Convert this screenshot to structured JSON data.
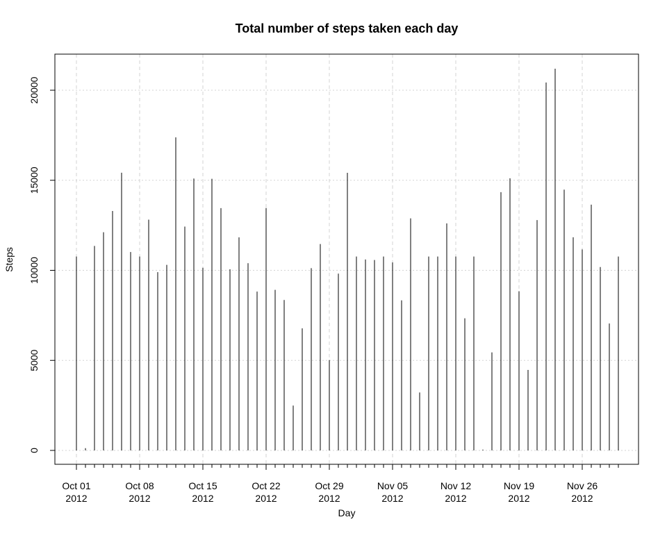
{
  "chart_data": {
    "type": "bar",
    "title": "Total number of steps taken each day",
    "xlabel": "Day",
    "ylabel": "Steps",
    "ylim": [
      0,
      21194
    ],
    "grid": true,
    "y_ticks": [
      0,
      5000,
      10000,
      15000,
      20000
    ],
    "x_ticks": [
      {
        "date": "2012-10-01",
        "label1": "Oct 01",
        "label2": "2012"
      },
      {
        "date": "2012-10-08",
        "label1": "Oct 08",
        "label2": "2012"
      },
      {
        "date": "2012-10-15",
        "label1": "Oct 15",
        "label2": "2012"
      },
      {
        "date": "2012-10-22",
        "label1": "Oct 22",
        "label2": "2012"
      },
      {
        "date": "2012-10-29",
        "label1": "Oct 29",
        "label2": "2012"
      },
      {
        "date": "2012-11-05",
        "label1": "Nov 05",
        "label2": "2012"
      },
      {
        "date": "2012-11-12",
        "label1": "Nov 12",
        "label2": "2012"
      },
      {
        "date": "2012-11-19",
        "label1": "Nov 19",
        "label2": "2012"
      },
      {
        "date": "2012-11-26",
        "label1": "Nov 26",
        "label2": "2012"
      }
    ],
    "categories": [
      "2012-10-01",
      "2012-10-02",
      "2012-10-03",
      "2012-10-04",
      "2012-10-05",
      "2012-10-06",
      "2012-10-07",
      "2012-10-08",
      "2012-10-09",
      "2012-10-10",
      "2012-10-11",
      "2012-10-12",
      "2012-10-13",
      "2012-10-14",
      "2012-10-15",
      "2012-10-16",
      "2012-10-17",
      "2012-10-18",
      "2012-10-19",
      "2012-10-20",
      "2012-10-21",
      "2012-10-22",
      "2012-10-23",
      "2012-10-24",
      "2012-10-25",
      "2012-10-26",
      "2012-10-27",
      "2012-10-28",
      "2012-10-29",
      "2012-10-30",
      "2012-10-31",
      "2012-11-01",
      "2012-11-02",
      "2012-11-03",
      "2012-11-04",
      "2012-11-05",
      "2012-11-06",
      "2012-11-07",
      "2012-11-08",
      "2012-11-09",
      "2012-11-10",
      "2012-11-11",
      "2012-11-12",
      "2012-11-13",
      "2012-11-14",
      "2012-11-15",
      "2012-11-16",
      "2012-11-17",
      "2012-11-18",
      "2012-11-19",
      "2012-11-20",
      "2012-11-21",
      "2012-11-22",
      "2012-11-23",
      "2012-11-24",
      "2012-11-25",
      "2012-11-26",
      "2012-11-27",
      "2012-11-28",
      "2012-11-29",
      "2012-11-30"
    ],
    "values": [
      10766,
      126,
      11352,
      12116,
      13294,
      15420,
      11015,
      10766,
      12811,
      9900,
      10304,
      17382,
      12426,
      15098,
      10139,
      15084,
      13452,
      10056,
      11829,
      10395,
      8821,
      13460,
      8918,
      8355,
      2492,
      6778,
      10119,
      11458,
      5018,
      9819,
      15414,
      10766,
      10600,
      10571,
      10766,
      10439,
      8334,
      12883,
      3219,
      10766,
      10766,
      12608,
      10765,
      7336,
      10766,
      41,
      5441,
      14339,
      15110,
      8841,
      4472,
      12787,
      20427,
      21194,
      14478,
      11834,
      11162,
      13646,
      10183,
      7047,
      10766
    ]
  }
}
